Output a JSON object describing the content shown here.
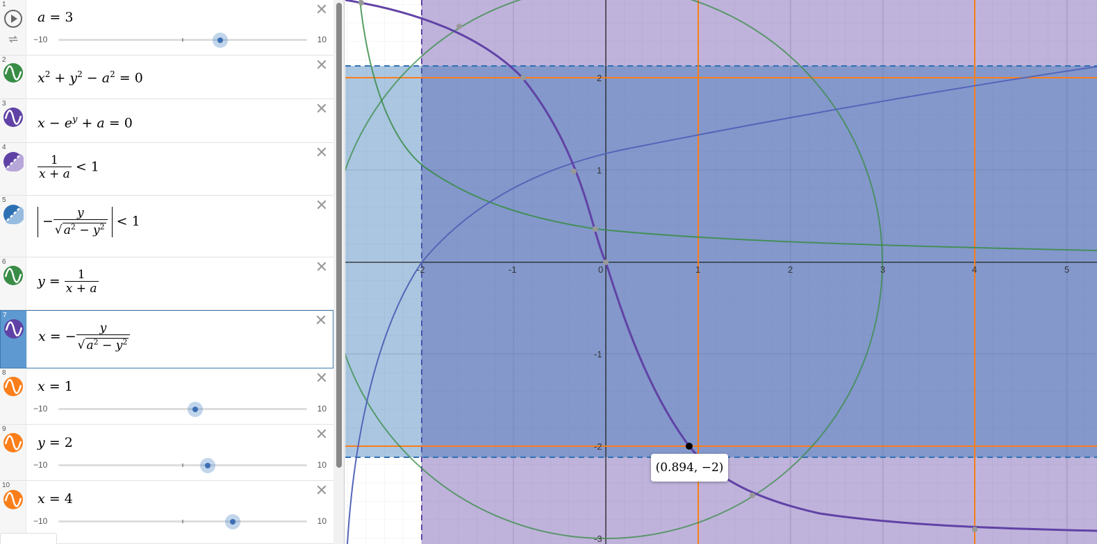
{
  "sidebar": {
    "expressions": [
      {
        "index": "1",
        "text": "a = 3",
        "slider": {
          "min": "−10",
          "max": "10",
          "value": 3
        }
      },
      {
        "index": "2",
        "text": "x² + y² − a² = 0"
      },
      {
        "index": "3",
        "text": "x − e^y + a = 0"
      },
      {
        "index": "4",
        "text": "1/(x+a) < 1"
      },
      {
        "index": "5",
        "text": "|−y/√(a²−y²)| < 1"
      },
      {
        "index": "6",
        "text": "y = 1/(x+a)"
      },
      {
        "index": "7",
        "text": "x = −y/√(a²−y²)"
      },
      {
        "index": "8",
        "text": "x = 1",
        "slider": {
          "min": "−10",
          "max": "10",
          "value": 1
        }
      },
      {
        "index": "9",
        "text": "y = 2",
        "slider": {
          "min": "−10",
          "max": "10",
          "value": 2
        }
      },
      {
        "index": "10",
        "text": "x = 4",
        "slider": {
          "min": "−10",
          "max": "10",
          "value": 4
        }
      }
    ]
  },
  "graph": {
    "x_ticks": [
      "-2",
      "-1",
      "0",
      "1",
      "2",
      "3",
      "4",
      "5"
    ],
    "y_ticks": [
      "2",
      "1",
      "-1",
      "-2",
      "-3"
    ],
    "tooltip": "(0.894, −2)",
    "colors": {
      "green": "#388c46",
      "purple": "#6042a6",
      "orange": "#fa7e19",
      "blue": "#2d70b3"
    }
  }
}
